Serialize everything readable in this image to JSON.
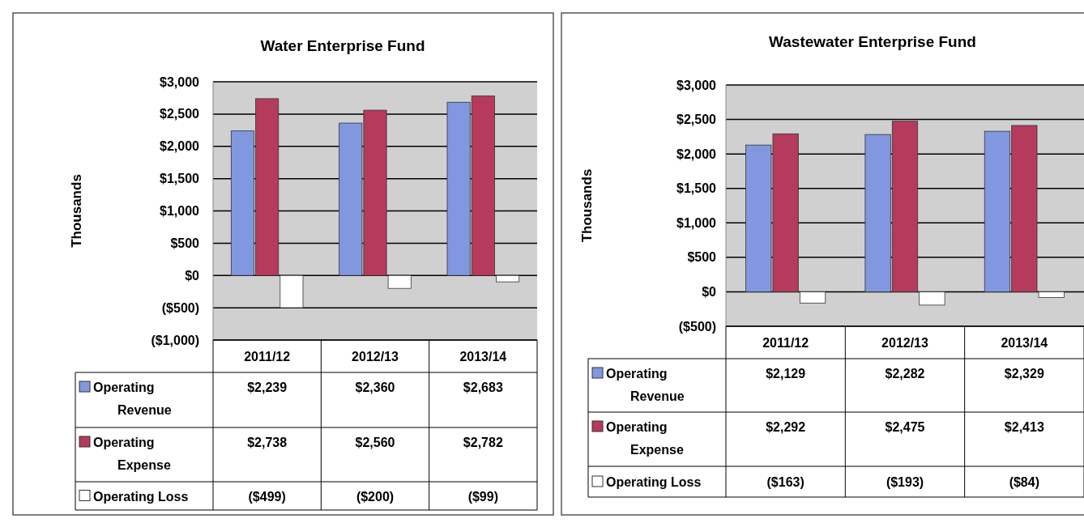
{
  "chart_data": [
    {
      "type": "bar",
      "title": "Water Enterprise Fund",
      "ylabel": "Thousands",
      "categories": [
        "2011/12",
        "2012/13",
        "2013/14"
      ],
      "ylim": [
        -1000,
        3000
      ],
      "yticks": [
        {
          "value": -1000,
          "label": "($1,000)"
        },
        {
          "value": -500,
          "label": "($500)"
        },
        {
          "value": 0,
          "label": "$0"
        },
        {
          "value": 500,
          "label": "$500"
        },
        {
          "value": 1000,
          "label": "$1,000"
        },
        {
          "value": 1500,
          "label": "$1,500"
        },
        {
          "value": 2000,
          "label": "$2,000"
        },
        {
          "value": 2500,
          "label": "$2,500"
        },
        {
          "value": 3000,
          "label": "$3,000"
        }
      ],
      "grid": "y",
      "legend": "bottom",
      "series": [
        {
          "name": "Operating Revenue",
          "color": "#8197e0",
          "values": [
            2239,
            2360,
            2683
          ],
          "value_labels": [
            "$2,239",
            "$2,360",
            "$2,683"
          ]
        },
        {
          "name": "Operating Expense",
          "color": "#b63a5c",
          "values": [
            2738,
            2560,
            2782
          ],
          "value_labels": [
            "$2,738",
            "$2,560",
            "$2,782"
          ]
        },
        {
          "name": "Operating Loss",
          "color": "#ffffff",
          "values": [
            -499,
            -200,
            -99
          ],
          "value_labels": [
            "($499)",
            "($200)",
            "($99)"
          ]
        }
      ]
    },
    {
      "type": "bar",
      "title": "Wastewater Enterprise Fund",
      "ylabel": "Thousands",
      "categories": [
        "2011/12",
        "2012/13",
        "2013/14"
      ],
      "ylim": [
        -500,
        3000
      ],
      "yticks": [
        {
          "value": -500,
          "label": "($500)"
        },
        {
          "value": 0,
          "label": "$0"
        },
        {
          "value": 500,
          "label": "$500"
        },
        {
          "value": 1000,
          "label": "$1,000"
        },
        {
          "value": 1500,
          "label": "$1,500"
        },
        {
          "value": 2000,
          "label": "$2,000"
        },
        {
          "value": 2500,
          "label": "$2,500"
        },
        {
          "value": 3000,
          "label": "$3,000"
        }
      ],
      "grid": "y",
      "legend": "bottom",
      "series": [
        {
          "name": "Operating Revenue",
          "color": "#8197e0",
          "values": [
            2129,
            2282,
            2329
          ],
          "value_labels": [
            "$2,129",
            "$2,282",
            "$2,329"
          ]
        },
        {
          "name": "Operating Expense",
          "color": "#b63a5c",
          "values": [
            2292,
            2475,
            2413
          ],
          "value_labels": [
            "$2,292",
            "$2,475",
            "$2,413"
          ]
        },
        {
          "name": "Operating Loss",
          "color": "#ffffff",
          "values": [
            -163,
            -193,
            -84
          ],
          "value_labels": [
            "($163)",
            "($193)",
            "($84)"
          ]
        }
      ]
    }
  ]
}
